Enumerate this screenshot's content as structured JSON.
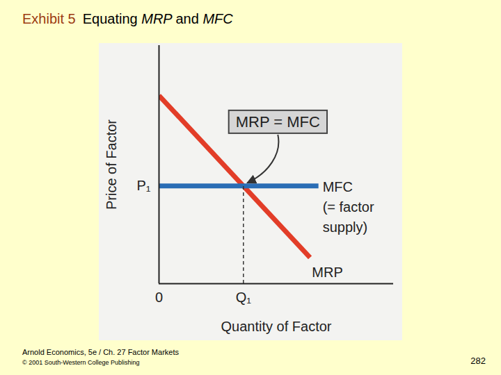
{
  "slide": {
    "label": "Exhibit 5",
    "title": "Equating MRP and MFC",
    "source": "Arnold Economics, 5e / Ch. 27  Factor Markets",
    "copyright": "© 2001 South-Western College Publishing",
    "page": 282
  },
  "chart_data": {
    "type": "line",
    "xlabel": "Quantity of Factor",
    "ylabel": "Price of Factor",
    "xlim": [
      0,
      10
    ],
    "ylim": [
      0,
      10
    ],
    "xticks": [
      0,
      {
        "value": 3.6,
        "label": "Q₁"
      }
    ],
    "yticks": [
      {
        "value": 4.1,
        "label": "P₁"
      }
    ],
    "grid": false,
    "series": [
      {
        "name": "MRP",
        "color": "#e23d28",
        "x": [
          0,
          6.44
        ],
        "values": [
          7.9,
          1.1
        ]
      },
      {
        "name": "MFC",
        "note": "(= factor\nsupply)",
        "color": "#2a6db5",
        "x": [
          0,
          6.8
        ],
        "values": [
          4.1,
          4.1
        ]
      }
    ],
    "annotations": [
      {
        "text": "MRP = MFC",
        "x": 3.6,
        "y": 4.1,
        "line_style": "dashed"
      }
    ]
  }
}
